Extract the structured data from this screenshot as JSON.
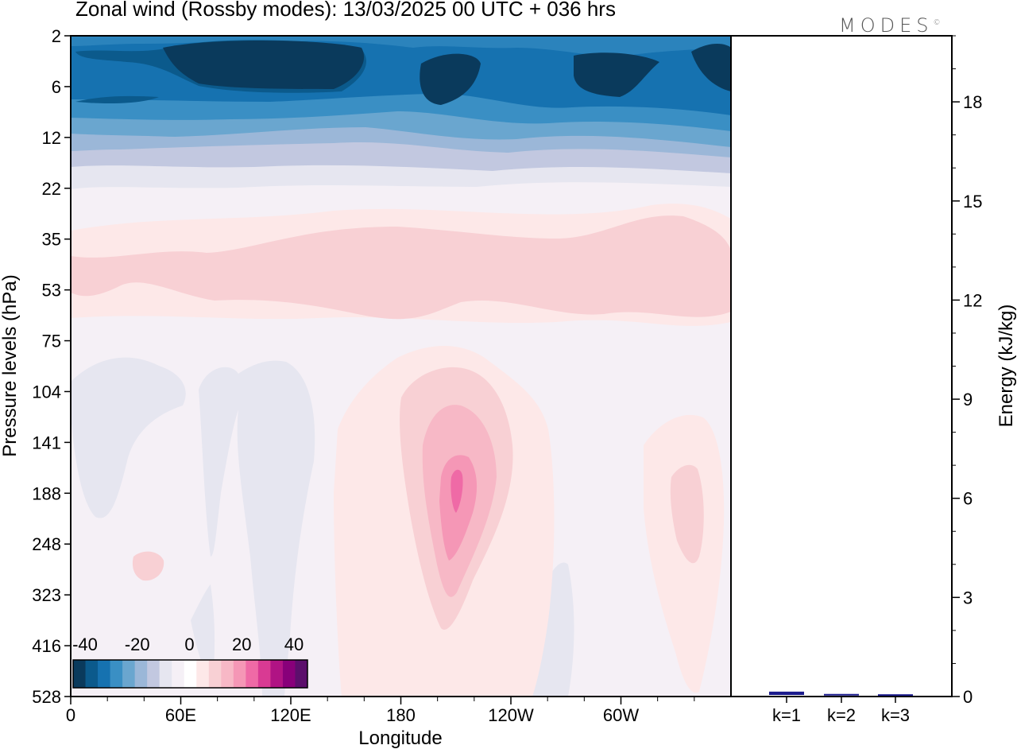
{
  "title": "Zonal wind (Rossby modes):  13/03/2025  00 UTC  + 036 hrs",
  "logo": "MODES",
  "chart_data": [
    {
      "type": "heatmap",
      "title": "Zonal wind (Rossby modes):  13/03/2025  00 UTC  + 036 hrs",
      "xlabel": "Longitude",
      "ylabel": "Pressure levels (hPa)",
      "x_ticks": [
        "0",
        "60E",
        "120E",
        "180",
        "120W",
        "60W"
      ],
      "y_ticks": [
        "2",
        "6",
        "12",
        "22",
        "35",
        "53",
        "75",
        "104",
        "141",
        "188",
        "248",
        "323",
        "416",
        "528"
      ],
      "y_scale": "log",
      "colorbar": {
        "labels": [
          "-40",
          "-20",
          "0",
          "20",
          "40"
        ],
        "range": [
          -40,
          40
        ],
        "colors": [
          "#0a3a5c",
          "#0b5a8c",
          "#1672b0",
          "#3a8fc4",
          "#6aa6cf",
          "#9bb7d8",
          "#c2c8e0",
          "#e6e6f0",
          "#f5f0f6",
          "#ffffff",
          "#fde8e8",
          "#f8d0d4",
          "#f7b8c6",
          "#f597b6",
          "#ef6aa6",
          "#d93a93",
          "#b01384",
          "#88007a",
          "#5c0f6c"
        ]
      },
      "features": [
        {
          "description": "strong easterly-negative band",
          "pressure_range": [
            2,
            12
          ],
          "min_value": -40
        },
        {
          "description": "positive jet maximum",
          "longitude": "160W",
          "pressure": 188,
          "max_value": 20
        },
        {
          "description": "positive band",
          "pressure_range": [
            35,
            75
          ],
          "value": 5
        }
      ]
    },
    {
      "type": "bar",
      "ylabel": "Energy (kJ/kg)",
      "categories": [
        "k=1",
        "k=2",
        "k=3"
      ],
      "values": [
        0.1,
        0.03,
        0.02
      ],
      "ylim": [
        0,
        20
      ],
      "y_ticks": [
        "0",
        "3",
        "6",
        "9",
        "12",
        "15",
        "18"
      ],
      "bar_color": "#1a1a8c"
    }
  ]
}
